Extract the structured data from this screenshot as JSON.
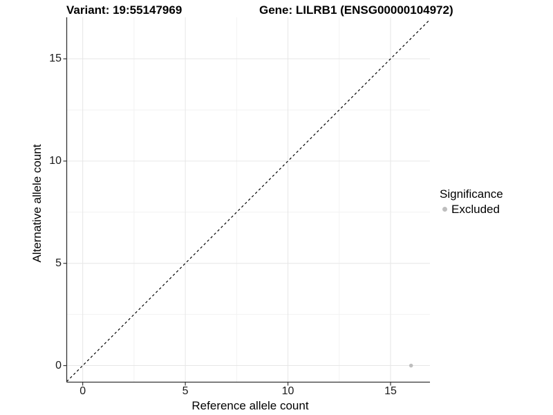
{
  "figure": {
    "title_left": "Variant: 19:55147969",
    "title_right": "Gene: LILRB1 (ENSG00000104972)"
  },
  "axes": {
    "x_label": "Reference allele count",
    "y_label": "Alternative allele count"
  },
  "legend": {
    "title": "Significance",
    "items": [
      {
        "label": "Excluded",
        "color": "#bebebe"
      }
    ]
  },
  "colors": {
    "background": "#ffffff",
    "axis_line": "#333333",
    "tick_mark": "#333333",
    "grid_major": "#e6e6e6",
    "grid_minor": "#f2f2f2",
    "point": "#bebebe",
    "reference_line": "#000000"
  },
  "chart_data": {
    "type": "scatter",
    "title": "Variant: 19:55147969   Gene: LILRB1 (ENSG00000104972)",
    "xlabel": "Reference allele count",
    "ylabel": "Alternative allele count",
    "x_ticks": [
      0,
      5,
      10,
      15
    ],
    "y_ticks": [
      0,
      5,
      10,
      15
    ],
    "x_minor_ticks": [
      2.5,
      7.5,
      12.5
    ],
    "y_minor_ticks": [
      2.5,
      7.5,
      12.5
    ],
    "xlim": [
      -0.78,
      16.92
    ],
    "ylim": [
      -0.81,
      17.03
    ],
    "grid": true,
    "legend_position": "right",
    "legend_title": "Significance",
    "series": [
      {
        "name": "Excluded",
        "color": "#bebebe",
        "points": [
          {
            "x": 16,
            "y": 0
          }
        ]
      }
    ],
    "reference_line": {
      "type": "identity",
      "style": "dashed",
      "color": "#000000"
    }
  }
}
